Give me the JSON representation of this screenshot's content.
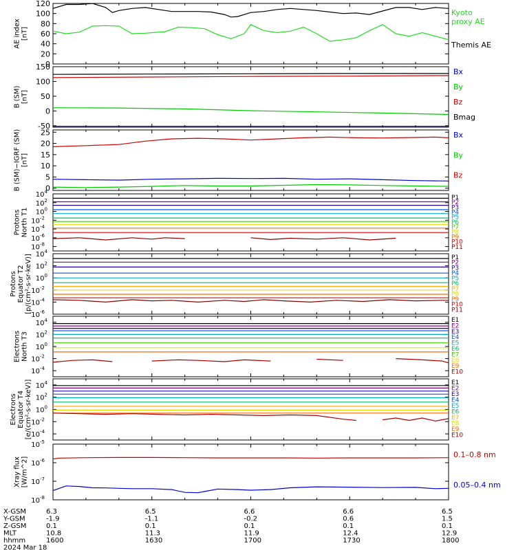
{
  "page": {
    "title": "",
    "date": "2024 Mar 18",
    "colors": {
      "black": "#000000",
      "red": "#cc0000",
      "green": "#00cc00",
      "blue": "#0000cc",
      "proxy_green": "#22dd22"
    }
  },
  "chart_data": [
    {
      "type": "line",
      "id": "ae",
      "ylabel": [
        "AE index",
        "[nT]"
      ],
      "ylim": [
        0,
        120
      ],
      "yticks": [
        0,
        20,
        40,
        60,
        80,
        100,
        120
      ],
      "grid": false,
      "x_range": [
        "1600",
        "1800"
      ],
      "series": [
        {
          "name": "Kyoto proxy AE",
          "label_lines": [
            "Kyoto",
            "proxy AE"
          ],
          "color": "#22dd22",
          "x": [
            0,
            4,
            8,
            12,
            16,
            20,
            24,
            28,
            30,
            34,
            38,
            42,
            46,
            50,
            54,
            58,
            60,
            64,
            68,
            72,
            76,
            80,
            84,
            88,
            92,
            96,
            100,
            104,
            108,
            112,
            116,
            120
          ],
          "y": [
            65,
            60,
            63,
            75,
            76,
            75,
            60,
            61,
            62,
            64,
            73,
            72,
            70,
            58,
            50,
            60,
            78,
            66,
            62,
            65,
            73,
            60,
            45,
            48,
            52,
            66,
            78,
            60,
            55,
            62,
            55,
            48
          ]
        },
        {
          "name": "Themis AE",
          "label_lines": [
            "Themis AE"
          ],
          "color": "#000000",
          "x": [
            0,
            4,
            8,
            12,
            16,
            18,
            20,
            24,
            28,
            32,
            36,
            40,
            44,
            48,
            52,
            54,
            56,
            60,
            64,
            68,
            72,
            76,
            80,
            84,
            88,
            92,
            96,
            100,
            104,
            108,
            112,
            116,
            120
          ],
          "y": [
            110,
            118,
            118,
            120,
            112,
            102,
            106,
            110,
            112,
            108,
            104,
            104,
            104,
            103,
            98,
            93,
            94,
            102,
            104,
            108,
            110,
            108,
            106,
            103,
            100,
            101,
            98,
            105,
            112,
            112,
            108,
            112,
            110
          ]
        }
      ],
      "legend_order": [
        0,
        1
      ]
    },
    {
      "type": "line",
      "id": "bsm",
      "ylabel": [
        "B (SM)",
        "[nT]"
      ],
      "ylim": [
        -55,
        150
      ],
      "yticks": [
        -50,
        0,
        50,
        100,
        150
      ],
      "grid": false,
      "series": [
        {
          "name": "Bx",
          "color": "#0000cc",
          "x": [
            0,
            120
          ],
          "y": [
            -52,
            -52
          ]
        },
        {
          "name": "By",
          "color": "#00cc00",
          "x": [
            0,
            20,
            40,
            60,
            80,
            100,
            120
          ],
          "y": [
            11,
            10,
            7,
            1,
            -3,
            -7,
            -12
          ]
        },
        {
          "name": "Bz",
          "color": "#cc0000",
          "x": [
            0,
            30,
            60,
            90,
            120
          ],
          "y": [
            113,
            115,
            117,
            118,
            120
          ]
        },
        {
          "name": "Bmag",
          "color": "#000000",
          "x": [
            0,
            30,
            60,
            90,
            120
          ],
          "y": [
            124,
            125,
            126,
            127,
            127
          ]
        }
      ]
    },
    {
      "type": "line",
      "id": "bigrf",
      "ylabel": [
        "B (SM)−IGRF (SM)",
        "[nT]"
      ],
      "ylim": [
        -1,
        26
      ],
      "yticks": [
        0,
        5,
        10,
        15,
        20,
        25
      ],
      "grid": false,
      "series": [
        {
          "name": "Bx",
          "color": "#0000cc",
          "x": [
            0,
            10,
            20,
            30,
            40,
            50,
            60,
            70,
            80,
            90,
            100,
            110,
            120
          ],
          "y": [
            4,
            3.8,
            3.6,
            4.0,
            4.2,
            4.4,
            4.3,
            4.4,
            4.0,
            4.2,
            3.8,
            3.4,
            3.2
          ]
        },
        {
          "name": "By",
          "color": "#00cc00",
          "x": [
            0,
            10,
            20,
            30,
            40,
            50,
            60,
            70,
            80,
            90,
            100,
            110,
            120
          ],
          "y": [
            0.5,
            0.3,
            0.5,
            0.8,
            1.2,
            1.0,
            1.0,
            1.3,
            1.6,
            1.5,
            1.2,
            1.0,
            0.8
          ]
        },
        {
          "name": "Bz",
          "color": "#cc0000",
          "x": [
            0,
            10,
            20,
            28,
            36,
            44,
            52,
            60,
            68,
            76,
            84,
            92,
            100,
            108,
            116,
            120
          ],
          "y": [
            18.5,
            19,
            19.5,
            21,
            22,
            22.3,
            22,
            21.5,
            22,
            22.5,
            22.8,
            22.5,
            22.4,
            22.6,
            22.8,
            22.5
          ]
        }
      ]
    },
    {
      "type": "line",
      "id": "pn",
      "ylabel": [
        "Protons",
        "North T1"
      ],
      "yscale": "log",
      "ylim_exp": [
        -9,
        4
      ],
      "ytick_exps": [
        -8,
        -6,
        -4,
        -2,
        0,
        2,
        4
      ],
      "grid": false,
      "series": [
        {
          "name": "P1",
          "color": "#000000",
          "flat_exp": 3.0
        },
        {
          "name": "P2",
          "color": "#880088",
          "flat_exp": 2.2
        },
        {
          "name": "P3",
          "color": "#2200aa",
          "flat_exp": 1.4
        },
        {
          "name": "P4",
          "color": "#0055ff",
          "flat_exp": 0.4
        },
        {
          "name": "P5",
          "color": "#00aacc",
          "flat_exp": -0.5
        },
        {
          "name": "P6",
          "color": "#00bb66",
          "flat_exp": -1.5
        },
        {
          "name": "P7",
          "color": "#44cc00",
          "flat_exp": -2.3
        },
        {
          "name": "P8",
          "color": "#dddd00",
          "flat_exp": -3.0
        },
        {
          "name": "P9",
          "color": "#ff6600",
          "flat_exp": -3.8
        },
        {
          "name": "P10",
          "color": "#dd0000",
          "flat_exp": -4.8
        },
        {
          "name": "P11",
          "color": "#880000",
          "x": [
            0,
            8,
            16,
            24,
            30,
            34,
            40,
            46,
            60,
            66,
            72,
            80,
            88,
            96,
            104,
            110
          ],
          "y_exp": [
            -6.2,
            -6.0,
            -6.5,
            -6.0,
            -6.3,
            -6.0,
            -6.2,
            null,
            -6.0,
            -6.4,
            -6.1,
            -6.3,
            -6.0,
            -6.5,
            -6.1,
            null
          ]
        }
      ]
    },
    {
      "type": "line",
      "id": "pe",
      "ylabel": [
        "Protons",
        "Equator T2",
        "[p/(cm²-s-sr-keV)]"
      ],
      "yscale": "log",
      "ylim_exp": [
        -6,
        4
      ],
      "ytick_exps": [
        -6,
        -4,
        -2,
        0,
        2,
        4
      ],
      "grid": false,
      "series": [
        {
          "name": "P1",
          "color": "#000000",
          "flat_exp": 3.2
        },
        {
          "name": "P2",
          "color": "#880088",
          "flat_exp": 2.6
        },
        {
          "name": "P3",
          "color": "#2200aa",
          "flat_exp": 1.8
        },
        {
          "name": "P4",
          "color": "#0055ff",
          "flat_exp": 0.8
        },
        {
          "name": "P5",
          "color": "#00aacc",
          "flat_exp": 0.0
        },
        {
          "name": "P6",
          "color": "#00bb66",
          "flat_exp": -0.8
        },
        {
          "name": "P7",
          "color": "#ffaa00",
          "flat_exp": -1.4
        },
        {
          "name": "P8",
          "color": "#dddd00",
          "flat_exp": -2.0
        },
        {
          "name": "P9",
          "color": "#ff6600",
          "flat_exp": -2.7
        },
        {
          "name": "P10",
          "color": "#dd0000",
          "flat_exp": -3.3
        },
        {
          "name": "P11",
          "color": "#880000",
          "x": [
            0,
            8,
            16,
            24,
            30,
            36,
            44,
            52,
            58,
            64,
            70,
            78,
            86,
            94,
            102,
            110,
            118,
            120
          ],
          "y_exp": [
            -3.6,
            -3.7,
            -4.0,
            -3.6,
            -3.8,
            -3.7,
            -4.0,
            -3.7,
            -3.9,
            -3.6,
            -3.8,
            -4.0,
            -3.7,
            -3.9,
            -3.6,
            -3.8,
            -3.7,
            -3.7
          ]
        }
      ]
    },
    {
      "type": "line",
      "id": "en",
      "ylabel": [
        "Electrons",
        "North T3"
      ],
      "yscale": "log",
      "ylim_exp": [
        -5,
        5
      ],
      "ytick_exps": [
        -4,
        -2,
        0,
        2,
        4
      ],
      "grid": false,
      "series": [
        {
          "name": "E1",
          "color": "#000000",
          "flat_exp": 3.8
        },
        {
          "name": "E2",
          "color": "#880088",
          "flat_exp": 3.4
        },
        {
          "name": "E3",
          "color": "#2200aa",
          "flat_exp": 3.0
        },
        {
          "name": "E4",
          "color": "#0055ff",
          "flat_exp": 2.6
        },
        {
          "name": "E5",
          "color": "#00aacc",
          "flat_exp": 2.0
        },
        {
          "name": "E6",
          "color": "#00bb66",
          "flat_exp": 1.4
        },
        {
          "name": "E7",
          "color": "#44cc00",
          "flat_exp": 0.6
        },
        {
          "name": "E8",
          "color": "#dddd00",
          "flat_exp": -0.2
        },
        {
          "name": "E9",
          "color": "#ff6600",
          "flat_exp": -0.9
        },
        {
          "name": "E10",
          "color": "#aa0000",
          "x": [
            0,
            6,
            12,
            18,
            22,
            30,
            38,
            44,
            52,
            58,
            66,
            74,
            80,
            88,
            96,
            104,
            112,
            118,
            120
          ],
          "y_exp": [
            -2.6,
            -2.3,
            -2.2,
            -2.5,
            null,
            -2.4,
            -2.2,
            -2.3,
            -2.5,
            -2.2,
            -2.4,
            null,
            -2.1,
            -2.3,
            null,
            -2.0,
            -2.2,
            -2.4,
            -2.7
          ]
        }
      ]
    },
    {
      "type": "line",
      "id": "ee",
      "ylabel": [
        "Electrons",
        "Equator T4",
        "[e/(cm²-s-sr-keV)]"
      ],
      "yscale": "log",
      "ylim_exp": [
        -5,
        5
      ],
      "ytick_exps": [
        -4,
        -2,
        0,
        2,
        4
      ],
      "grid": false,
      "series": [
        {
          "name": "E1",
          "color": "#000000",
          "flat_exp": 3.9
        },
        {
          "name": "E2",
          "color": "#880088",
          "flat_exp": 3.5
        },
        {
          "name": "E3",
          "color": "#2200aa",
          "flat_exp": 3.0
        },
        {
          "name": "E4",
          "color": "#0055ff",
          "flat_exp": 2.5
        },
        {
          "name": "E5",
          "color": "#00aacc",
          "flat_exp": 1.9
        },
        {
          "name": "E6",
          "color": "#00bb66",
          "flat_exp": 1.2
        },
        {
          "name": "E7",
          "color": "#ffaa00",
          "flat_exp": 0.5
        },
        {
          "name": "E8",
          "color": "#dddd00",
          "flat_exp": -0.1
        },
        {
          "name": "E9",
          "color": "#ff6600",
          "flat_exp": -0.6
        },
        {
          "name": "E10",
          "color": "#aa0000",
          "x": [
            0,
            8,
            16,
            24,
            32,
            40,
            48,
            56,
            64,
            72,
            80,
            88,
            92,
            96,
            100,
            104,
            108,
            112,
            116,
            120
          ],
          "y_exp": [
            -0.6,
            -0.7,
            -0.8,
            -0.7,
            -0.8,
            -0.9,
            -0.8,
            -0.9,
            -1.0,
            -0.9,
            -1.0,
            -1.6,
            -1.8,
            null,
            -1.7,
            -1.4,
            -1.8,
            -1.4,
            -1.9,
            -1.5
          ]
        }
      ]
    },
    {
      "type": "line",
      "id": "xray",
      "ylabel": [
        "Xray flux",
        "[W/m^2]"
      ],
      "yscale": "log",
      "ylim_exp": [
        -8,
        -5
      ],
      "ytick_exps": [
        -8,
        -7,
        -6,
        -5
      ],
      "grid": false,
      "series": [
        {
          "name": "0.1–0.8 nm",
          "color": "#cc0000",
          "x": [
            0,
            2,
            10,
            20,
            30,
            40,
            50,
            60,
            70,
            80,
            90,
            100,
            110,
            120
          ],
          "y_exp": [
            -5.8,
            -5.75,
            -5.73,
            -5.72,
            -5.72,
            -5.73,
            -5.74,
            -5.74,
            -5.74,
            -5.75,
            -5.74,
            -5.74,
            -5.74,
            -5.73
          ]
        },
        {
          "name": "0.05–0.4 nm",
          "color": "#0000cc",
          "x": [
            0,
            4,
            8,
            12,
            16,
            20,
            24,
            30,
            36,
            40,
            44,
            46,
            50,
            56,
            60,
            66,
            72,
            80,
            90,
            100,
            110,
            116,
            120
          ],
          "y_exp": [
            -7.5,
            -7.25,
            -7.28,
            -7.35,
            -7.36,
            -7.38,
            -7.4,
            -7.4,
            -7.45,
            -7.6,
            -7.62,
            -7.55,
            -7.42,
            -7.45,
            -7.48,
            -7.45,
            -7.35,
            -7.3,
            -7.32,
            -7.34,
            -7.33,
            -7.4,
            -7.38
          ]
        }
      ]
    }
  ],
  "orbit": {
    "rows": [
      {
        "label": "X-GSM",
        "values": [
          "6.3",
          "6.5",
          "6.6",
          "6.6",
          "6.5"
        ]
      },
      {
        "label": "Y-GSM",
        "values": [
          "-1.9",
          "-1.1",
          "-0.2",
          "0.6",
          "1.5"
        ]
      },
      {
        "label": "Z-GSM",
        "values": [
          "0.1",
          "0.1",
          "0.1",
          "0.1",
          "0.1"
        ]
      },
      {
        "label": "MLT",
        "values": [
          "10.8",
          "11.3",
          "11.9",
          "12.4",
          "12.9"
        ]
      },
      {
        "label": "hhmm",
        "values": [
          "1600",
          "1630",
          "1700",
          "1730",
          "1800"
        ]
      }
    ]
  }
}
